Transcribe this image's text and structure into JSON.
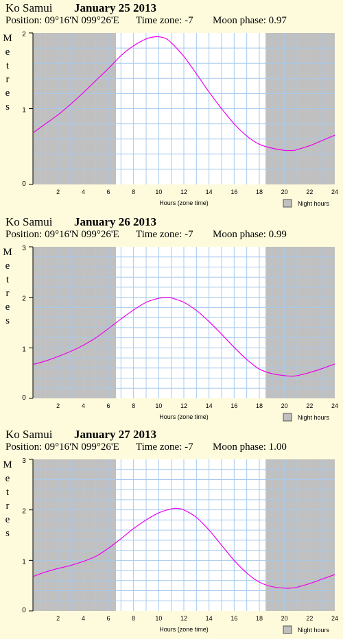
{
  "colors": {
    "background": "#fefbdc",
    "night": "#c0c0c0",
    "grid": "#a6c9ee",
    "curve": "#ee00ee",
    "day": "#ffffff"
  },
  "legend_label": "Night hours",
  "chart_data": [
    {
      "type": "line",
      "location": "Ko Samui",
      "title": "January 25 2013",
      "position_text": "Position: 09°16'N 099°26'E",
      "timezone_text": "Time zone: -7",
      "moon_text": "Moon phase: 0.97",
      "ylabel": "Metres",
      "xlabel": "Hours (zone time)",
      "xlim": [
        0,
        24
      ],
      "ylim": [
        0,
        2
      ],
      "xticks": [
        2,
        4,
        6,
        8,
        10,
        12,
        14,
        16,
        18,
        20,
        22,
        24
      ],
      "yticks": [
        0,
        1,
        2
      ],
      "night": [
        [
          0,
          6.6
        ],
        [
          18.5,
          24
        ]
      ],
      "series": [
        {
          "x": [
            0,
            1,
            2,
            3,
            4,
            5,
            6,
            7,
            8,
            9,
            9.8,
            10.5,
            11,
            12,
            13,
            14,
            15,
            16,
            17,
            18,
            19,
            20,
            20.8,
            21,
            22,
            23,
            24
          ],
          "values": [
            0.68,
            0.8,
            0.92,
            1.06,
            1.21,
            1.37,
            1.53,
            1.7,
            1.83,
            1.92,
            1.95,
            1.93,
            1.87,
            1.69,
            1.46,
            1.22,
            1.0,
            0.8,
            0.64,
            0.53,
            0.48,
            0.45,
            0.45,
            0.46,
            0.51,
            0.58,
            0.65
          ]
        }
      ]
    },
    {
      "type": "line",
      "location": "Ko Samui",
      "title": "January 26 2013",
      "position_text": "Position: 09°16'N 099°26'E",
      "timezone_text": "Time zone: -7",
      "moon_text": "Moon phase: 0.99",
      "ylabel": "Metres",
      "xlabel": "Hours (zone time)",
      "xlim": [
        0,
        24
      ],
      "ylim": [
        0,
        3
      ],
      "xticks": [
        2,
        4,
        6,
        8,
        10,
        12,
        14,
        16,
        18,
        20,
        22,
        24
      ],
      "yticks": [
        0,
        1,
        2,
        3
      ],
      "night": [
        [
          0,
          6.6
        ],
        [
          18.5,
          24
        ]
      ],
      "series": [
        {
          "x": [
            0,
            1,
            2,
            3,
            4,
            5,
            6,
            7,
            8,
            9,
            10,
            10.8,
            11,
            12,
            13,
            14,
            15,
            16,
            17,
            18,
            19,
            20,
            20.6,
            21,
            22,
            23,
            24
          ],
          "values": [
            0.67,
            0.74,
            0.83,
            0.93,
            1.05,
            1.2,
            1.38,
            1.57,
            1.75,
            1.9,
            1.98,
            2.0,
            1.99,
            1.9,
            1.74,
            1.52,
            1.27,
            1.01,
            0.77,
            0.58,
            0.49,
            0.45,
            0.44,
            0.45,
            0.51,
            0.59,
            0.68
          ]
        }
      ]
    },
    {
      "type": "line",
      "location": "Ko Samui",
      "title": "January 27 2013",
      "position_text": "Position: 09°16'N 099°26'E",
      "timezone_text": "Time zone: -7",
      "moon_text": "Moon phase: 1.00",
      "ylabel": "Metres",
      "xlabel": "Hours (zone time)",
      "xlim": [
        0,
        24
      ],
      "ylim": [
        0,
        3
      ],
      "xticks": [
        2,
        4,
        6,
        8,
        10,
        12,
        14,
        16,
        18,
        20,
        22,
        24
      ],
      "yticks": [
        0,
        1,
        2,
        3
      ],
      "night": [
        [
          0,
          6.6
        ],
        [
          18.5,
          24
        ]
      ],
      "series": [
        {
          "x": [
            0,
            1,
            2,
            3,
            4,
            5,
            6,
            7,
            8,
            9,
            10,
            11,
            11.5,
            12,
            13,
            14,
            15,
            16,
            17,
            18,
            19,
            20,
            20.5,
            21,
            22,
            23,
            24
          ],
          "values": [
            0.68,
            0.77,
            0.84,
            0.9,
            0.98,
            1.08,
            1.24,
            1.43,
            1.63,
            1.8,
            1.94,
            2.02,
            2.03,
            2.0,
            1.85,
            1.6,
            1.3,
            1.0,
            0.75,
            0.57,
            0.48,
            0.45,
            0.45,
            0.47,
            0.54,
            0.63,
            0.72
          ]
        }
      ]
    }
  ]
}
